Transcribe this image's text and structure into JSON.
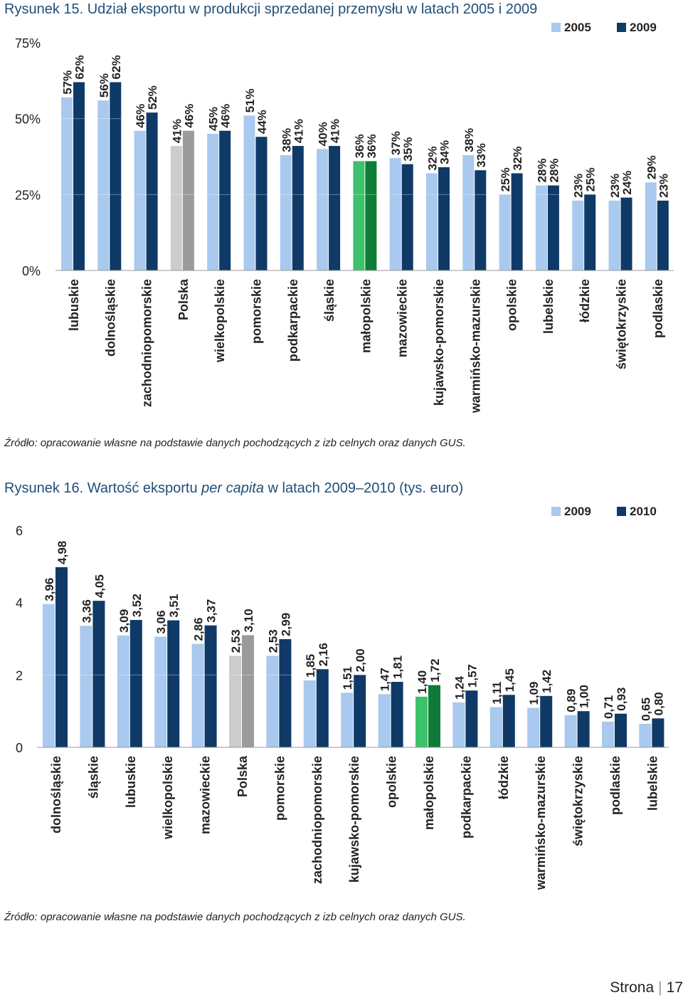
{
  "figure1": {
    "title_label": "Rysunek 15.",
    "title_text": "Udział eksportu w produkcji sprzedanej przemysłu w latach 2005 i 2009",
    "source": "Źródło: opracowanie własne na podstawie danych pochodzących z izb celnych oraz danych GUS.",
    "chart_data": {
      "type": "bar",
      "title": "Rysunek 15. Udział eksportu w produkcji sprzedanej przemysłu w latach 2005 i 2009",
      "categories": [
        "lubuskie",
        "dolnośląskie",
        "zachodniopomorskie",
        "Polska",
        "wielkopolskie",
        "pomorskie",
        "podkarpackie",
        "śląskie",
        "małopolskie",
        "mazowieckie",
        "kujawsko-pomorskie",
        "warmińsko-mazurskie",
        "opolskie",
        "lubelskie",
        "łódzkie",
        "świętokrzyskie",
        "podlaskie"
      ],
      "series": [
        {
          "name": "2005",
          "values": [
            57,
            56,
            46,
            41,
            45,
            51,
            38,
            40,
            36,
            37,
            32,
            38,
            25,
            28,
            23,
            23,
            29
          ]
        },
        {
          "name": "2009",
          "values": [
            62,
            62,
            52,
            46,
            46,
            44,
            41,
            41,
            36,
            35,
            34,
            33,
            32,
            28,
            25,
            24,
            23
          ]
        }
      ],
      "value_suffix": "%",
      "ylim": [
        0,
        75
      ],
      "yticks": [
        0,
        25,
        50,
        75
      ],
      "ytick_labels": [
        "0%",
        "25%",
        "50%",
        "75%"
      ],
      "legend_position": "top-right",
      "colors": {
        "series_2005": "#a9c9ee",
        "series_2009": "#0f3a68",
        "polska_2005": "#cccccc",
        "polska_2009": "#9b9b9b",
        "malopolskie_2005": "#3cc26b",
        "malopolskie_2009": "#0e7c36"
      },
      "highlight": {
        "Polska": "gray",
        "małopolskie": "green"
      }
    }
  },
  "figure2": {
    "title_label": "Rysunek 16.",
    "title_pre": "Wartość eksportu ",
    "title_italic": "per capita",
    "title_post": " w latach 2009–2010 (tys. euro)",
    "source": "Źródło: opracowanie własne na podstawie danych pochodzących z izb celnych oraz danych GUS.",
    "chart_data": {
      "type": "bar",
      "title": "Rysunek 16. Wartość eksportu per capita w latach 2009–2010 (tys. euro)",
      "categories": [
        "dolnośląskie",
        "śląskie",
        "lubuskie",
        "wielkopolskie",
        "mazowieckie",
        "Polska",
        "pomorskie",
        "zachodniopomorskie",
        "kujawsko-pomorskie",
        "opolskie",
        "małopolskie",
        "podkarpackie",
        "łódzkie",
        "warmińsko-mazurskie",
        "świętokrzyskie",
        "podlaskie",
        "lubelskie"
      ],
      "series": [
        {
          "name": "2009",
          "values": [
            3.96,
            3.36,
            3.09,
            3.06,
            2.86,
            2.53,
            2.53,
            1.85,
            1.51,
            1.47,
            1.4,
            1.24,
            1.11,
            1.09,
            0.89,
            0.71,
            0.65
          ]
        },
        {
          "name": "2010",
          "values": [
            4.98,
            4.05,
            3.52,
            3.51,
            3.37,
            3.1,
            2.99,
            2.16,
            2.0,
            1.81,
            1.72,
            1.57,
            1.45,
            1.42,
            1.0,
            0.93,
            0.8
          ]
        }
      ],
      "value_labels": {
        "2009": [
          "3,96",
          "3,36",
          "3,09",
          "3,06",
          "2,86",
          "2,53",
          "2,53",
          "1,85",
          "1,51",
          "1,47",
          "1,40",
          "1,24",
          "1,11",
          "1,09",
          "0,89",
          "0,71",
          "0,65"
        ],
        "2010": [
          "4,98",
          "4,05",
          "3,52",
          "3,51",
          "3,37",
          "3,10",
          "2,99",
          "2,16",
          "2,00",
          "1,81",
          "1,72",
          "1,57",
          "1,45",
          "1,42",
          "1,00",
          "0,93",
          "0,80"
        ]
      },
      "ylim": [
        0,
        6
      ],
      "yticks": [
        0,
        2,
        4,
        6
      ],
      "ytick_labels": [
        "0",
        "2",
        "4",
        "6"
      ],
      "legend_position": "top-right",
      "colors": {
        "series_2009": "#a9c9ee",
        "series_2010": "#0f3a68",
        "polska_2009": "#cccccc",
        "polska_2010": "#9b9b9b",
        "malopolskie_2009": "#3cc26b",
        "malopolskie_2010": "#0e7c36"
      },
      "highlight": {
        "Polska": "gray",
        "małopolskie": "green"
      }
    }
  },
  "footer": {
    "page_label": "Strona",
    "page_number": "17"
  }
}
